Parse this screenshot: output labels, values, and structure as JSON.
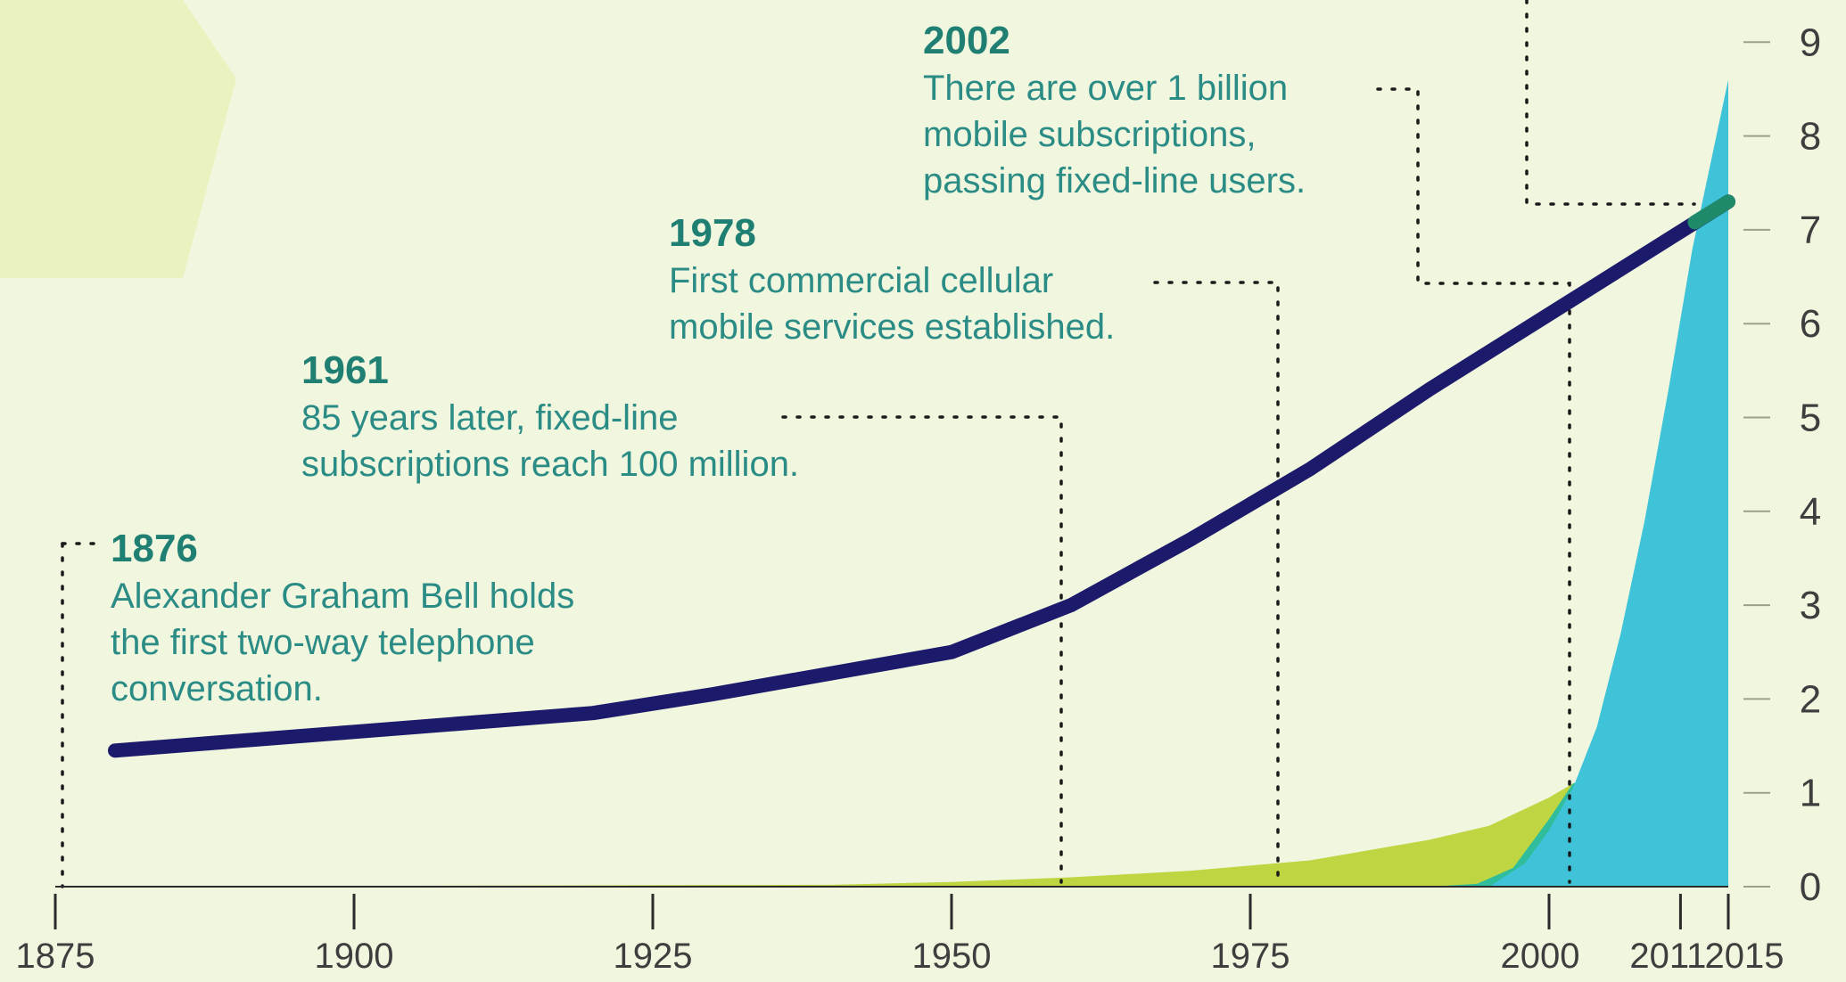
{
  "chart_data": {
    "type": "area",
    "x_ticks": [
      "1875",
      "1900",
      "1925",
      "1950",
      "1975",
      "2000",
      "2011",
      "2015"
    ],
    "y_ticks": [
      "0",
      "1",
      "2",
      "3",
      "4",
      "5",
      "6",
      "7",
      "8",
      "9"
    ],
    "xlim": [
      1875,
      2016
    ],
    "ylim": [
      0,
      9.5
    ],
    "series": [
      {
        "type": "line",
        "color": "#1c1a6b",
        "x": [
          1880,
          1900,
          1920,
          1930,
          1950,
          1960,
          1970,
          1980,
          1990,
          2000,
          2010,
          2015
        ],
        "y": [
          1.45,
          1.65,
          1.85,
          2.05,
          2.5,
          3.0,
          3.7,
          4.45,
          5.3,
          6.1,
          6.9,
          7.3
        ]
      },
      {
        "type": "area",
        "color": "#bfd642",
        "x": [
          1875,
          1940,
          1950,
          1960,
          1970,
          1980,
          1990,
          1995,
          2000,
          2002,
          2005,
          2008,
          2011,
          2013,
          2015
        ],
        "y": [
          0,
          0.02,
          0.05,
          0.1,
          0.17,
          0.28,
          0.5,
          0.65,
          0.95,
          1.1,
          1.2,
          1.22,
          1.18,
          1.05,
          0.95
        ]
      },
      {
        "type": "area",
        "color": "#2fbd9c",
        "x": [
          1875,
          1990,
          1994,
          1997,
          2000,
          2002,
          2005,
          2008,
          2011,
          2013,
          2015
        ],
        "y": [
          0,
          0,
          0.03,
          0.2,
          0.72,
          1.1,
          1.22,
          1.3,
          1.2,
          1.05,
          0.95
        ]
      },
      {
        "type": "area",
        "color": "#3fc3d9",
        "x": [
          1875,
          1995,
          1998,
          2000,
          2002,
          2004,
          2006,
          2008,
          2010,
          2012,
          2014,
          2015
        ],
        "y": [
          0,
          0,
          0.25,
          0.6,
          1.05,
          1.7,
          2.7,
          3.9,
          5.3,
          6.8,
          8.0,
          8.6
        ]
      }
    ],
    "annotations": [
      {
        "year": "1876",
        "text": [
          "Alexander Graham Bell holds",
          "the first two-way telephone",
          "conversation."
        ]
      },
      {
        "year": "1961",
        "text": [
          "85 years later, fixed-line",
          "subscriptions reach 100 million."
        ]
      },
      {
        "year": "1978",
        "text": [
          "First commercial cellular",
          "mobile services established."
        ]
      },
      {
        "year": "2002",
        "text": [
          "There are over 1 billion",
          "mobile subscriptions,",
          "passing fixed-line users."
        ]
      }
    ]
  }
}
